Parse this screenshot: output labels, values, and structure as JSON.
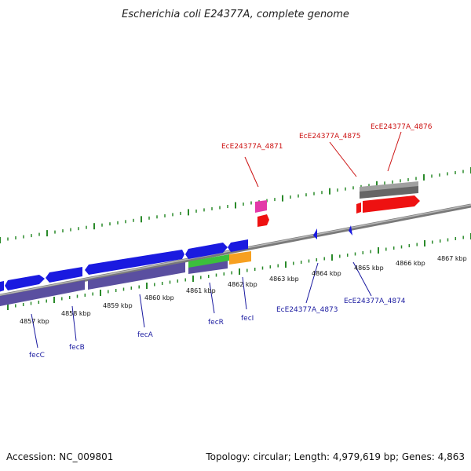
{
  "title": "Escherichia coli E24377A, complete genome",
  "footer": {
    "accession": "Accession: NC_009801",
    "stats": "Topology: circular; Length: 4,979,619 bp; Genes: 4,863"
  },
  "colors": {
    "backbone": "#8a8a8a",
    "tick": "#2a8a2a",
    "forward_gene": "#1a1ae0",
    "reverse_strip": "#5a4fa0",
    "rna_green": "#3cc03c",
    "orange": "#f7a020",
    "magenta": "#e33aa8",
    "red": "#ee1111",
    "gray_block": "#777777",
    "label_red": "#cc1111",
    "label_blue": "#1a1aa0"
  },
  "scale_labels": [
    "4857 kbp",
    "4858 kbp",
    "4859 kbp",
    "4860 kbp",
    "4861 kbp",
    "4862 kbp",
    "4863 kbp",
    "4864 kbp",
    "4865 kbp",
    "4866 kbp",
    "4867 kbp"
  ],
  "gene_labels_top": [
    {
      "name": "EcE24377A_4871"
    },
    {
      "name": "EcE24377A_4875"
    },
    {
      "name": "EcE24377A_4876"
    }
  ],
  "gene_labels_bottom": [
    {
      "name": "fecC"
    },
    {
      "name": "fecB"
    },
    {
      "name": "fecA"
    },
    {
      "name": "fecR"
    },
    {
      "name": "fecI"
    },
    {
      "name": "EcE24377A_4873"
    },
    {
      "name": "EcE24377A_4874"
    }
  ]
}
